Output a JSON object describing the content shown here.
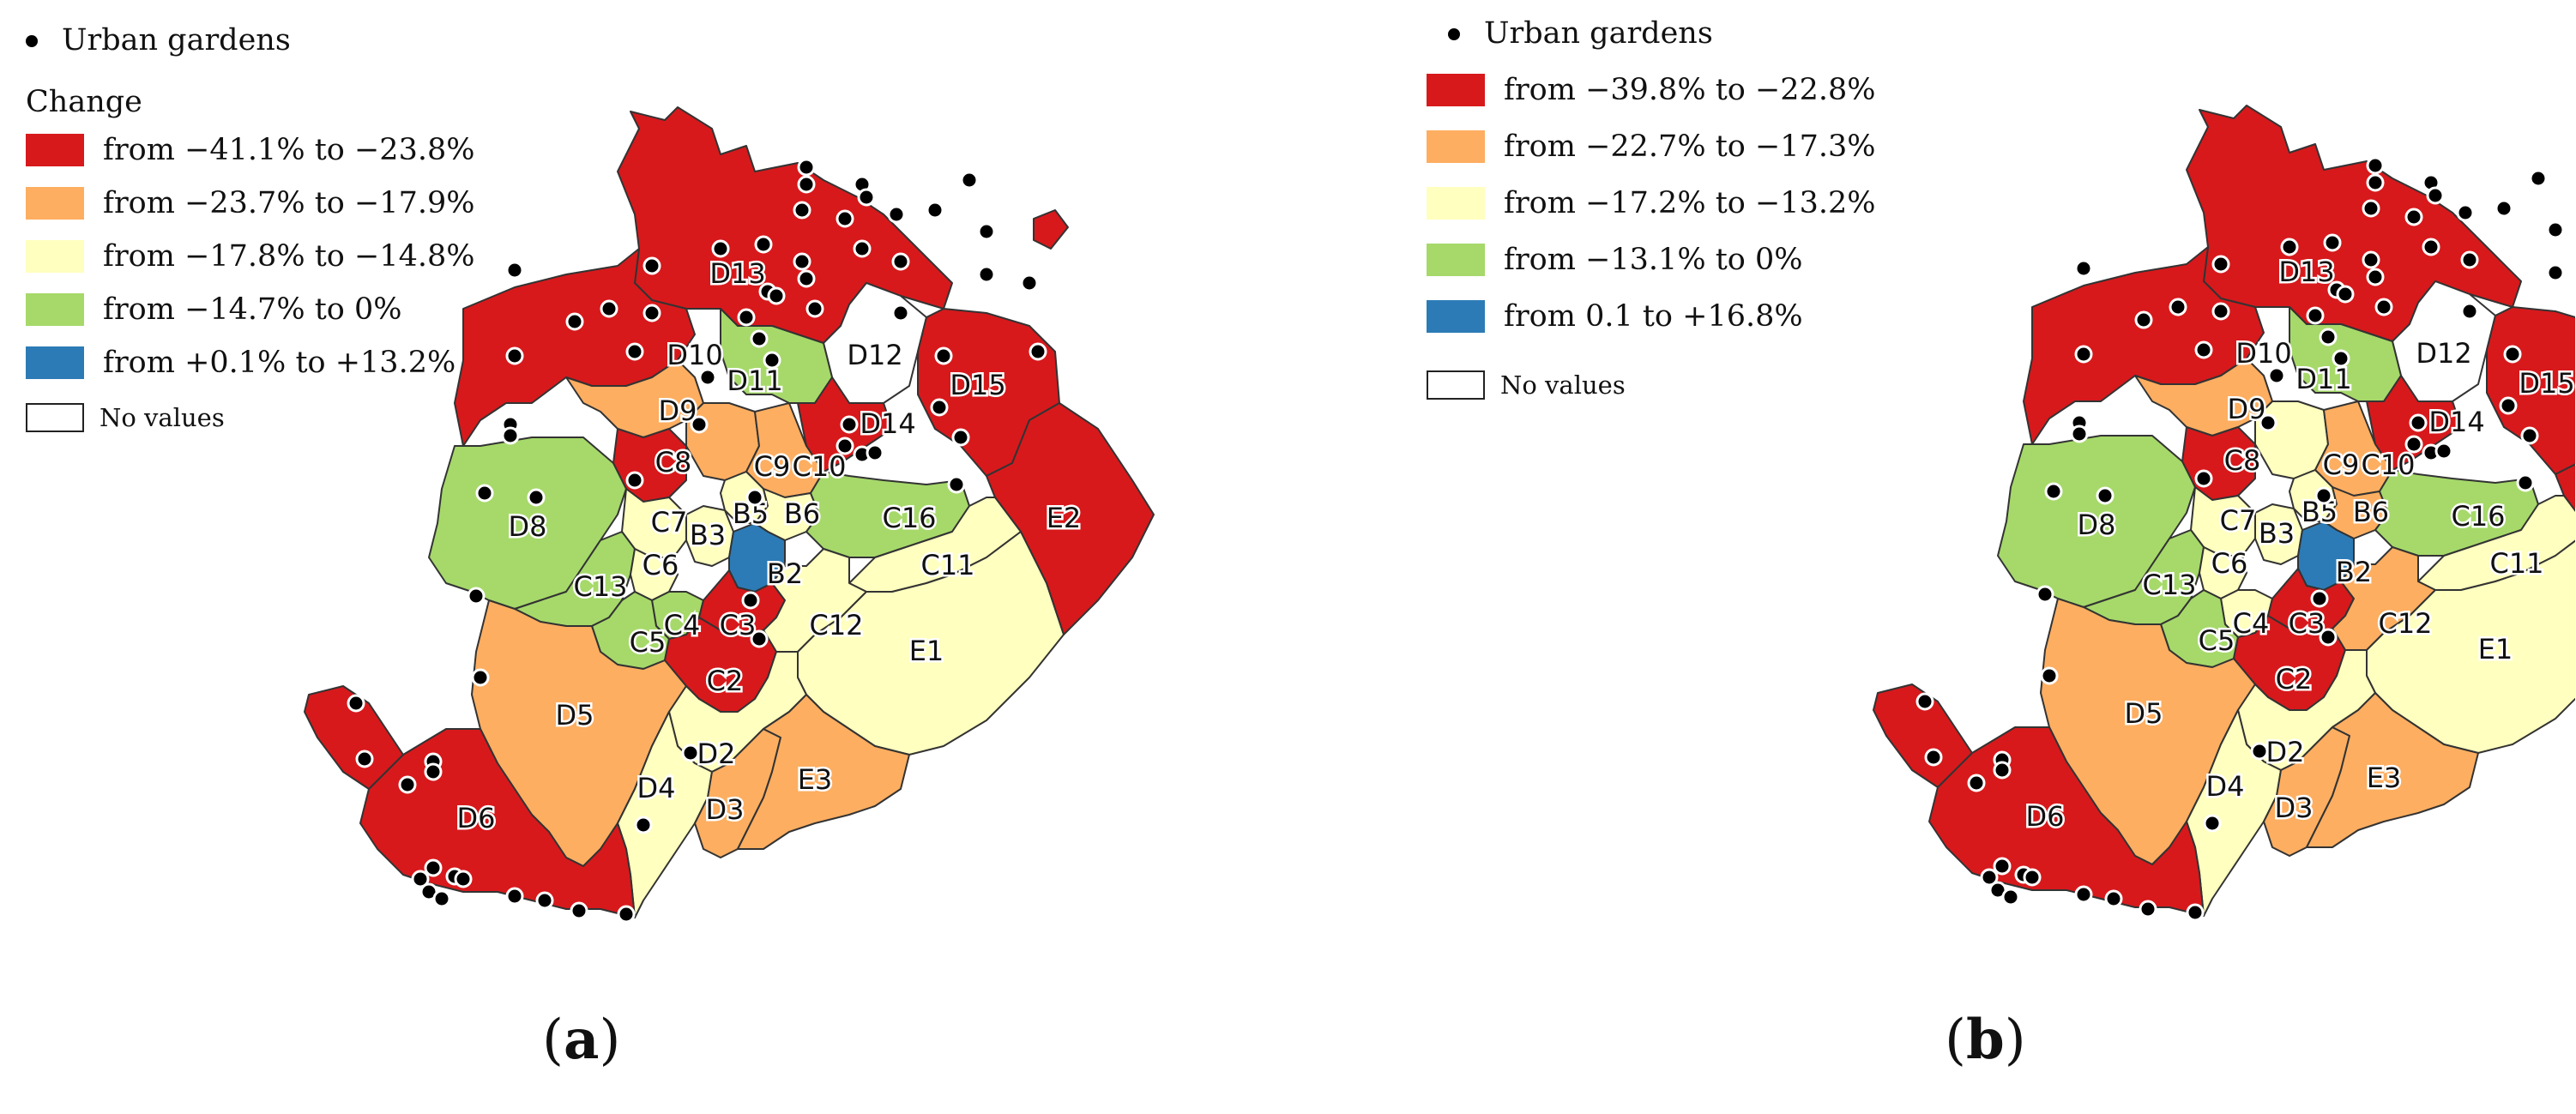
{
  "colors": {
    "red": "#d7191c",
    "orange": "#fdae61",
    "yellow": "#ffffbf",
    "green": "#a6d96a",
    "blue": "#2c7bb6",
    "none": "#ffffff"
  },
  "panels": [
    {
      "id": "a",
      "panel_label": "a",
      "legend": {
        "points_label": "Urban gardens",
        "title": "Change",
        "classes": [
          {
            "color": "#d7191c",
            "label": "from −41.1% to −23.8%"
          },
          {
            "color": "#fdae61",
            "label": "from −23.7%  to −17.9%"
          },
          {
            "color": "#ffffbf",
            "label": "from −17.8% to −14.8%"
          },
          {
            "color": "#a6d96a",
            "label": "from −14.7% to 0%"
          },
          {
            "color": "#2c7bb6",
            "label": "from +0.1% to +13.2%"
          }
        ],
        "no_values_label": "No values"
      },
      "districts": {
        "D13": "#d7191c",
        "D12": "none",
        "D15": "#d7191c",
        "E2": "#d7191c",
        "D10": "#d7191c",
        "D11": "#a6d96a",
        "D14": "#d7191c",
        "D9": "#fdae61",
        "C8": "#d7191c",
        "C9": "#fdae61",
        "C10": "#fdae61",
        "D8": "#a6d96a",
        "C7": "#ffffbf",
        "B3": "#ffffbf",
        "B5": "#ffffbf",
        "B6": "#ffffbf",
        "C16": "#a6d96a",
        "C13": "#a6d96a",
        "C6": "#ffffbf",
        "B2": "#2c7bb6",
        "C11": "#ffffbf",
        "C4": "#a6d96a",
        "C5": "#a6d96a",
        "C3": "#d7191c",
        "C12": "#ffffbf",
        "E1": "#ffffbf",
        "C2": "#d7191c",
        "D5": "#fdae61",
        "D2": "#ffffbf",
        "D4": "#ffffbf",
        "D3": "#fdae61",
        "E3": "#fdae61",
        "D6": "#d7191c",
        "D7": "#d7191c"
      }
    },
    {
      "id": "b",
      "panel_label": "b",
      "legend": {
        "points_label": "Urban gardens",
        "title": "",
        "classes": [
          {
            "color": "#d7191c",
            "label": "from −39.8% to −22.8%"
          },
          {
            "color": "#fdae61",
            "label": "from −22.7% to −17.3%"
          },
          {
            "color": "#ffffbf",
            "label": "from −17.2% to −13.2%"
          },
          {
            "color": "#a6d96a",
            "label": "from −13.1% to 0%"
          },
          {
            "color": "#2c7bb6",
            "label": "from 0.1 to +16.8%"
          }
        ],
        "no_values_label": "No values"
      },
      "districts": {
        "D13": "#d7191c",
        "D12": "none",
        "D15": "#d7191c",
        "E2": "#d7191c",
        "D10": "#d7191c",
        "D11": "#a6d96a",
        "D14": "#d7191c",
        "D9": "#fdae61",
        "C8": "#d7191c",
        "C9": "#ffffbf",
        "C10": "#fdae61",
        "D8": "#a6d96a",
        "C7": "#ffffbf",
        "B3": "#ffffbf",
        "B5": "#ffffbf",
        "B6": "#fdae61",
        "C16": "#a6d96a",
        "C13": "#a6d96a",
        "C6": "#ffffbf",
        "B2": "#2c7bb6",
        "C11": "#ffffbf",
        "C4": "#ffffbf",
        "C5": "#a6d96a",
        "C3": "#d7191c",
        "C12": "#fdae61",
        "E1": "#ffffbf",
        "C2": "#d7191c",
        "D5": "#fdae61",
        "D2": "#ffffbf",
        "D4": "#ffffbf",
        "D3": "#fdae61",
        "E3": "#fdae61",
        "D6": "#d7191c",
        "D7": "#d7191c"
      }
    }
  ]
}
